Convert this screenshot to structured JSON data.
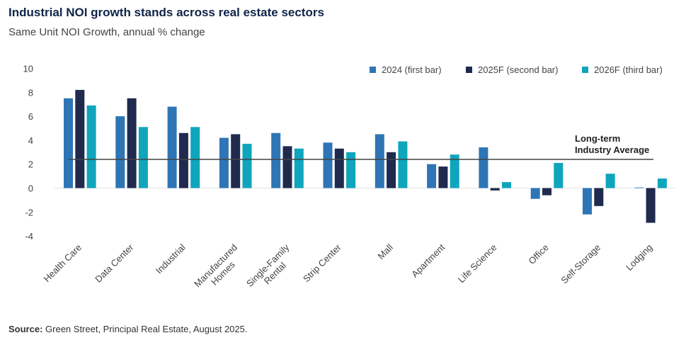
{
  "title": "Industrial NOI growth stands across real estate sectors",
  "subtitle": "Same Unit NOI Growth, annual % change",
  "source_label": "Source:",
  "source_text": "Green Street, Principal Real Estate, August 2025.",
  "chart_data": {
    "type": "bar",
    "title": "Industrial NOI growth stands across real estate sectors",
    "subtitle": "Same Unit NOI Growth, annual % change",
    "categories": [
      "Health Care",
      "Data Center",
      "Industrial",
      "Manufactured Homes",
      "Single-Family Rental",
      "Strip Center",
      "Mall",
      "Apartment",
      "Life Science",
      "Office",
      "Self-Storage",
      "Lodging"
    ],
    "series": [
      {
        "name": "2024 (first bar)",
        "color": "#2e75b6",
        "values": [
          7.5,
          6.0,
          6.8,
          4.2,
          4.6,
          3.8,
          4.5,
          2.0,
          3.4,
          -0.9,
          -2.2,
          0.05
        ]
      },
      {
        "name": "2025F (second bar)",
        "color": "#1f2a4e",
        "values": [
          8.2,
          7.5,
          4.6,
          4.5,
          3.5,
          3.3,
          3.0,
          1.8,
          -0.2,
          -0.6,
          -1.5,
          -2.9
        ]
      },
      {
        "name": "2026F (third bar)",
        "color": "#0ea5bd",
        "values": [
          6.9,
          5.1,
          5.1,
          3.7,
          3.3,
          3.0,
          3.9,
          2.8,
          0.5,
          2.1,
          1.2,
          0.8
        ]
      }
    ],
    "yticks": [
      10,
      8,
      6,
      4,
      2,
      0,
      -2,
      -4
    ],
    "ylim": [
      -4,
      10
    ],
    "reference_line": {
      "value": 2.4,
      "label_line1": "Long-term",
      "label_line2": "Industry Average"
    },
    "legend_position": "top-right",
    "grid": false
  }
}
